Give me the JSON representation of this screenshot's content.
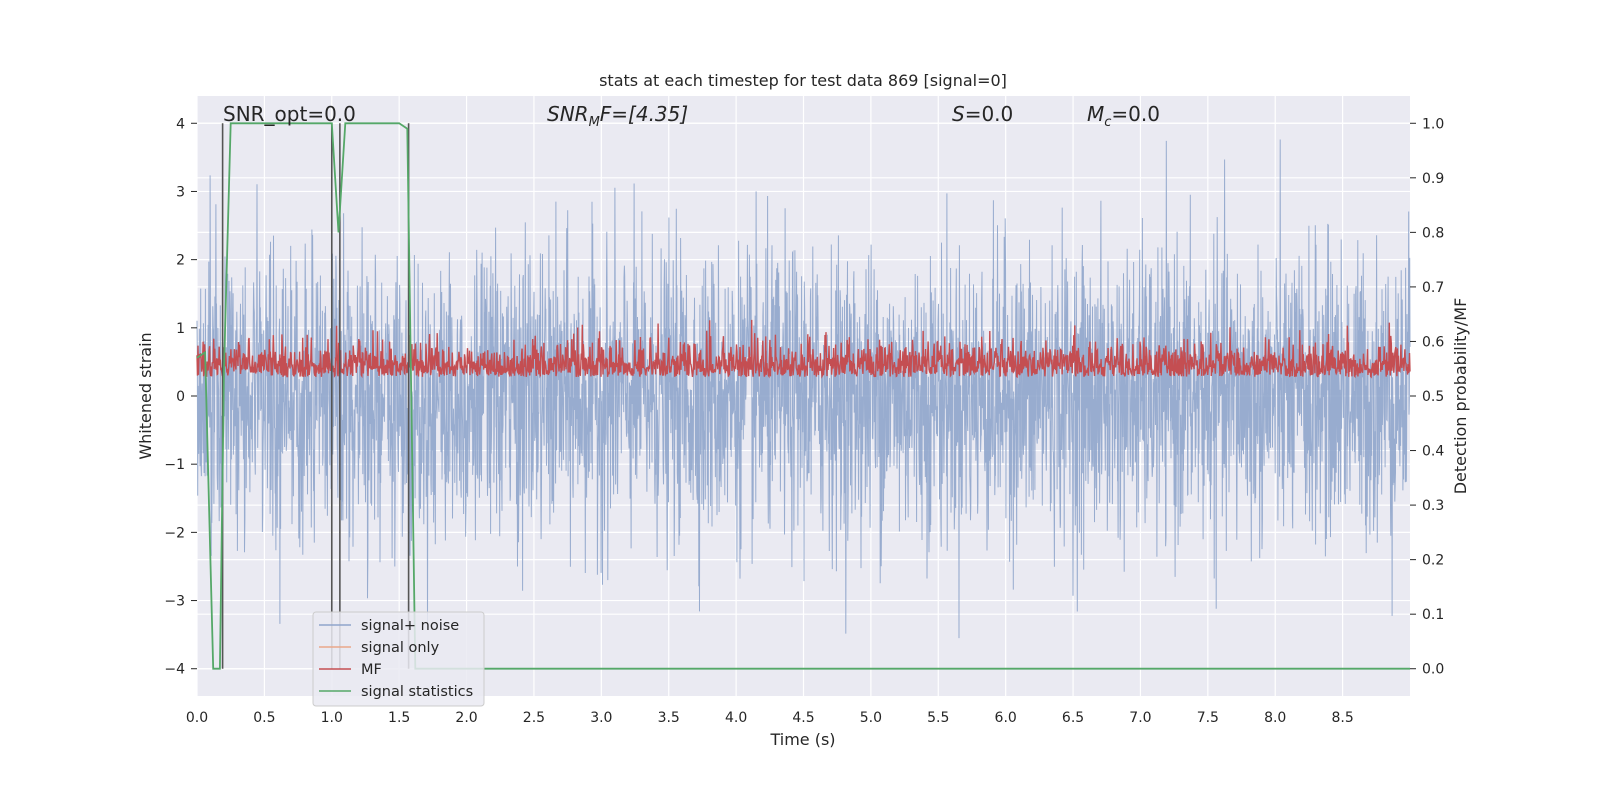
{
  "chart_data": {
    "type": "line",
    "title": "stats at each timestep for test data 869 [signal=0]",
    "xlabel": "Time (s)",
    "ylabel": "Whitened strain",
    "y2label": "Detection probability/MF",
    "xlim": [
      0.0,
      9.0
    ],
    "ylim": [
      -4.4,
      4.4
    ],
    "y2lim": [
      -0.05,
      1.05
    ],
    "x_ticks": [
      "0.0",
      "0.5",
      "1.0",
      "1.5",
      "2.0",
      "2.5",
      "3.0",
      "3.5",
      "4.0",
      "4.5",
      "5.0",
      "5.5",
      "6.0",
      "6.5",
      "7.0",
      "7.5",
      "8.0",
      "8.5"
    ],
    "y_ticks": [
      "4",
      "3",
      "2",
      "1",
      "0",
      "−1",
      "−2",
      "−3",
      "−4"
    ],
    "y2_ticks": [
      "1.0",
      "0.9",
      "0.8",
      "0.7",
      "0.6",
      "0.5",
      "0.4",
      "0.3",
      "0.2",
      "0.1",
      "0.0"
    ],
    "grid": true,
    "legend_position": "lower-left",
    "annotations": {
      "snr_opt": "SNR_opt=0.0",
      "snr_mf_sym": "SNR",
      "snr_mf_sub": "M",
      "snr_mf_val": "F=[4.35]",
      "s_sym": "S",
      "s_val": "=0.0",
      "mc_sym": "M",
      "mc_sub": "c",
      "mc_val": "=0.0"
    },
    "series": [
      {
        "name": "signal+ noise",
        "color": "#8fa5cb",
        "description": "whitened strain noise, samples oscillating roughly within ±2.5 with peaks near ±4"
      },
      {
        "name": "signal only",
        "color": "#e9a889",
        "description": "zero signal (no visible trace)"
      },
      {
        "name": "MF",
        "color": "#c44e52",
        "description": "matched-filter output on right axis, fluctuating about 0.50–0.63"
      },
      {
        "name": "signal statistics",
        "color": "#55a868",
        "x": [
          0.0,
          0.06,
          0.12,
          0.17,
          0.2,
          0.25,
          0.3,
          0.95,
          1.0,
          1.05,
          1.1,
          1.5,
          1.56,
          1.62,
          9.0
        ],
        "y": [
          0.57,
          0.58,
          0.0,
          0.0,
          0.55,
          1.0,
          1.0,
          1.0,
          1.0,
          0.8,
          1.0,
          1.0,
          0.99,
          0.0,
          0.0
        ]
      }
    ],
    "vertical_markers": {
      "color": "#555555",
      "x": [
        0.19,
        1.0,
        1.06,
        1.57
      ]
    }
  },
  "legend": [
    {
      "label": "signal+ noise",
      "color": "#8fa5cb"
    },
    {
      "label": "signal only",
      "color": "#e9a889"
    },
    {
      "label": "MF",
      "color": "#c44e52"
    },
    {
      "label": "signal statistics",
      "color": "#55a868"
    }
  ],
  "style": {
    "plot_bg": "#eaeaf2",
    "grid": "#ffffff"
  }
}
